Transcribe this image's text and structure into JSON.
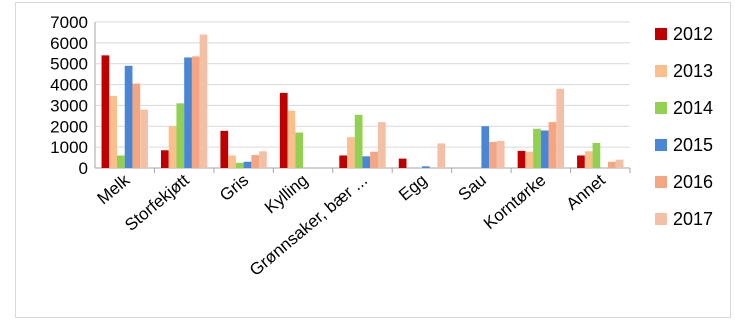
{
  "chart_data": {
    "type": "bar",
    "title": "",
    "xlabel": "",
    "ylabel": "",
    "ylim": [
      0,
      7000
    ],
    "yticks": [
      "7000",
      "6000",
      "5000",
      "4000",
      "3000",
      "2000",
      "1000",
      "0"
    ],
    "grid": true,
    "legend_position": "right",
    "categories": [
      "Melk",
      "Storfekjøtt",
      "Gris",
      "Kylling",
      "Grønnsaker, bær ...",
      "Egg",
      "Sau",
      "Korntørke",
      "Annet"
    ],
    "series": [
      {
        "name": "2012",
        "color": "#c00000",
        "values": [
          5400,
          850,
          1780,
          3600,
          600,
          450,
          0,
          820,
          600
        ]
      },
      {
        "name": "2013",
        "color": "#fbbf8e",
        "values": [
          3450,
          2000,
          600,
          2750,
          1480,
          0,
          0,
          780,
          800
        ]
      },
      {
        "name": "2014",
        "color": "#92d050",
        "values": [
          600,
          3100,
          250,
          1700,
          2550,
          0,
          0,
          1880,
          1200
        ]
      },
      {
        "name": "2015",
        "color": "#4a86d6",
        "values": [
          4900,
          5300,
          300,
          0,
          560,
          80,
          2000,
          1800,
          0
        ]
      },
      {
        "name": "2016",
        "color": "#f4a582",
        "values": [
          4050,
          5350,
          620,
          0,
          780,
          0,
          1250,
          2200,
          300
        ]
      },
      {
        "name": "2017",
        "color": "#f3c0a6",
        "values": [
          2800,
          6400,
          800,
          0,
          2200,
          1180,
          1300,
          3800,
          400
        ]
      }
    ]
  }
}
